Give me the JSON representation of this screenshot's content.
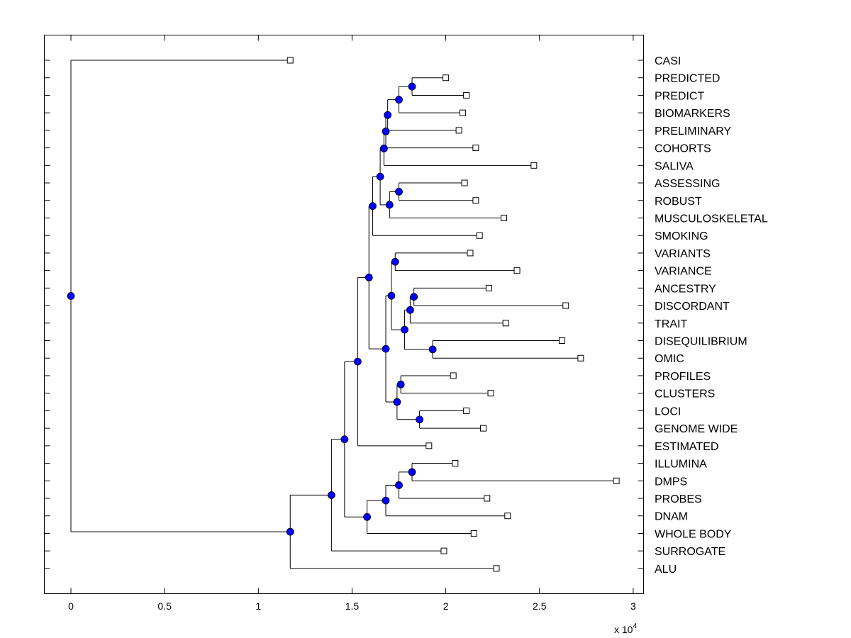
{
  "chart_data": {
    "type": "dendrogram",
    "title": "",
    "xlabel": "",
    "ylabel": "",
    "x_exponent_label": "x 10",
    "x_exponent": "4",
    "xlim": [
      -0.14,
      3.04
    ],
    "xticks": [
      0,
      0.5,
      1,
      1.5,
      2,
      2.5,
      3
    ],
    "xtick_labels": [
      "0",
      "0.5",
      "1",
      "1.5",
      "2",
      "2.5",
      "3"
    ],
    "grid": false,
    "colors": {
      "node": "#0000ff",
      "line": "#000000",
      "leaf_marker": "#ffffff"
    },
    "leaves": [
      {
        "label": "CASI",
        "x": 1.17
      },
      {
        "label": "PREDICTED",
        "x": 2.0
      },
      {
        "label": "PREDICT",
        "x": 2.11
      },
      {
        "label": "BIOMARKERS",
        "x": 2.09
      },
      {
        "label": "PRELIMINARY",
        "x": 2.07
      },
      {
        "label": "COHORTS",
        "x": 2.16
      },
      {
        "label": "SALIVA",
        "x": 2.47
      },
      {
        "label": "ASSESSING",
        "x": 2.1
      },
      {
        "label": "ROBUST",
        "x": 2.16
      },
      {
        "label": "MUSCULOSKELETAL",
        "x": 2.31
      },
      {
        "label": "SMOKING",
        "x": 2.18
      },
      {
        "label": "VARIANTS",
        "x": 2.13
      },
      {
        "label": "VARIANCE",
        "x": 2.38
      },
      {
        "label": "ANCESTRY",
        "x": 2.23
      },
      {
        "label": "DISCORDANT",
        "x": 2.64
      },
      {
        "label": "TRAIT",
        "x": 2.32
      },
      {
        "label": "DISEQUILIBRIUM",
        "x": 2.62
      },
      {
        "label": "OMIC",
        "x": 2.72
      },
      {
        "label": "PROFILES",
        "x": 2.04
      },
      {
        "label": "CLUSTERS",
        "x": 2.24
      },
      {
        "label": "LOCI",
        "x": 2.11
      },
      {
        "label": "GENOME WIDE",
        "x": 2.2
      },
      {
        "label": "ESTIMATED",
        "x": 1.91
      },
      {
        "label": "ILLUMINA",
        "x": 2.05
      },
      {
        "label": "DMPS",
        "x": 2.91
      },
      {
        "label": "PROBES",
        "x": 2.22
      },
      {
        "label": "DNAM",
        "x": 2.33
      },
      {
        "label": "WHOLE BODY",
        "x": 2.15
      },
      {
        "label": "SURROGATE",
        "x": 1.99
      },
      {
        "label": "ALU",
        "x": 2.27
      }
    ],
    "nodes": [
      {
        "id": "n1",
        "x": 1.82,
        "children": [
          "L1",
          "L2"
        ]
      },
      {
        "id": "n2",
        "x": 1.75,
        "children": [
          "n1",
          "L3"
        ]
      },
      {
        "id": "n3",
        "x": 1.69,
        "children": [
          "n2",
          "L4"
        ]
      },
      {
        "id": "n4",
        "x": 1.68,
        "children": [
          "n3",
          "L5"
        ]
      },
      {
        "id": "n5",
        "x": 1.67,
        "children": [
          "n4",
          "L6"
        ]
      },
      {
        "id": "n6",
        "x": 1.75,
        "children": [
          "L7",
          "L8"
        ]
      },
      {
        "id": "n7",
        "x": 1.7,
        "children": [
          "n6",
          "L9"
        ]
      },
      {
        "id": "n8",
        "x": 1.65,
        "children": [
          "n5",
          "n7"
        ]
      },
      {
        "id": "n9",
        "x": 1.61,
        "children": [
          "n8",
          "L10"
        ]
      },
      {
        "id": "n10",
        "x": 1.73,
        "children": [
          "L11",
          "L12"
        ]
      },
      {
        "id": "n11",
        "x": 1.83,
        "children": [
          "L13",
          "L14"
        ]
      },
      {
        "id": "n12",
        "x": 1.81,
        "children": [
          "n11",
          "L15"
        ]
      },
      {
        "id": "n13",
        "x": 1.93,
        "children": [
          "L16",
          "L17"
        ]
      },
      {
        "id": "n14",
        "x": 1.78,
        "children": [
          "n12",
          "n13"
        ]
      },
      {
        "id": "n15",
        "x": 1.71,
        "children": [
          "n10",
          "n14"
        ]
      },
      {
        "id": "n16",
        "x": 1.76,
        "children": [
          "L18",
          "L19"
        ]
      },
      {
        "id": "n17",
        "x": 1.86,
        "children": [
          "L20",
          "L21"
        ]
      },
      {
        "id": "n18",
        "x": 1.74,
        "children": [
          "n16",
          "n17"
        ]
      },
      {
        "id": "n19",
        "x": 1.68,
        "children": [
          "n15",
          "n18"
        ]
      },
      {
        "id": "n20",
        "x": 1.59,
        "children": [
          "n9",
          "n19"
        ]
      },
      {
        "id": "n21",
        "x": 1.53,
        "children": [
          "n20",
          "L22"
        ]
      },
      {
        "id": "n22",
        "x": 1.82,
        "children": [
          "L23",
          "L24"
        ]
      },
      {
        "id": "n23",
        "x": 1.75,
        "children": [
          "n22",
          "L25"
        ]
      },
      {
        "id": "n24",
        "x": 1.68,
        "children": [
          "n23",
          "L26"
        ]
      },
      {
        "id": "n25",
        "x": 1.58,
        "children": [
          "n24",
          "L27"
        ]
      },
      {
        "id": "n26",
        "x": 1.46,
        "children": [
          "n21",
          "n25"
        ]
      },
      {
        "id": "n27",
        "x": 1.39,
        "children": [
          "n26",
          "L28"
        ]
      },
      {
        "id": "n28",
        "x": 1.17,
        "children": [
          "n27",
          "L29"
        ]
      },
      {
        "id": "n29",
        "x": 0,
        "children": [
          "L0",
          "n28"
        ]
      }
    ]
  }
}
